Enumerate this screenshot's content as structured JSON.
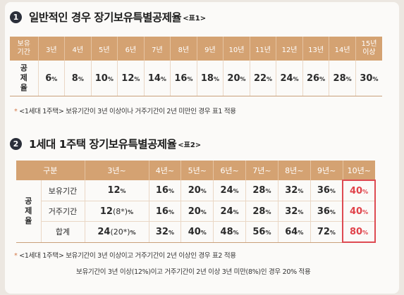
{
  "section1": {
    "num": "1",
    "title": "일반적인 경우 장기보유특별공제율",
    "note": "<표1>",
    "table": {
      "header_label": [
        "보유",
        "기간"
      ],
      "years": [
        "3년",
        "4년",
        "5년",
        "6년",
        "7년",
        "8년",
        "9년",
        "10년",
        "11년",
        "12년",
        "13년",
        "14년"
      ],
      "last_header": [
        "15년",
        "이상"
      ],
      "row_label": [
        "공",
        "제",
        "율"
      ],
      "rates": [
        "6",
        "8",
        "10",
        "12",
        "14",
        "16",
        "18",
        "20",
        "22",
        "24",
        "26",
        "28",
        "30"
      ],
      "unit": "%"
    },
    "footnote_star": "*",
    "footnote": "<1세대 1주택> 보유기간이 3년 이상이나 거주기간이 2년 미만인 경우 표1 적용"
  },
  "section2": {
    "num": "2",
    "title": "1세대 1주택 장기보유특별공제율",
    "note": "<표2>",
    "table": {
      "header_first": "구분",
      "columns": [
        "3년~",
        "4년~",
        "5년~",
        "6년~",
        "7년~",
        "8년~",
        "9년~",
        "10년~"
      ],
      "group_label": [
        "공",
        "제",
        "율"
      ],
      "rows": [
        {
          "label": "보유기간",
          "values": [
            "12",
            "16",
            "20",
            "24",
            "28",
            "32",
            "36",
            "40"
          ]
        },
        {
          "label": "거주기간",
          "first_value": "12",
          "first_paren": "(8*)",
          "values": [
            "16",
            "20",
            "24",
            "28",
            "32",
            "36",
            "40"
          ]
        },
        {
          "label": "합계",
          "first_value": "24",
          "first_paren": "(20*)",
          "values": [
            "32",
            "40",
            "48",
            "56",
            "64",
            "72",
            "80"
          ]
        }
      ],
      "unit": "%"
    },
    "footnote_star": "*",
    "footnote1": "<1세대 1주택> 보유기간이 3년 이상이고 거주기간이 2년 이상인 경우 표2 적용",
    "footnote2": "보유기간이 3년 이상(12%)이고 거주기간이 2년 이상 3년 미만(8%)인 경우 20% 적용"
  },
  "colors": {
    "header_bg": "#d4a272",
    "highlight": "#de4a52",
    "badge": "#2b2f3a"
  }
}
